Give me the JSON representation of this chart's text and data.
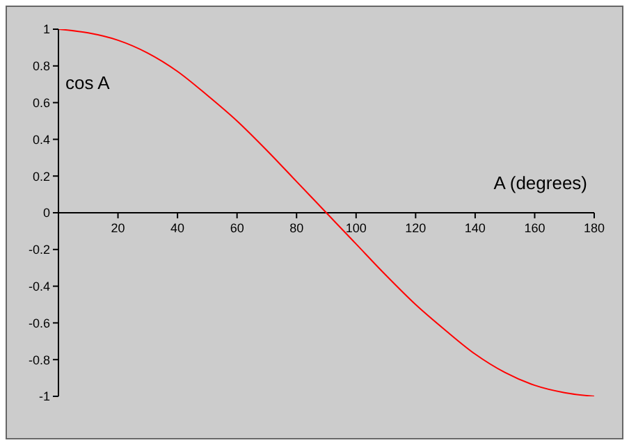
{
  "chart_data": {
    "type": "line",
    "xlabel": "A (degrees)",
    "ylabel": "cos A",
    "x": [
      0,
      10,
      20,
      30,
      40,
      50,
      60,
      70,
      80,
      90,
      100,
      110,
      120,
      130,
      140,
      150,
      160,
      170,
      180
    ],
    "series": [
      {
        "color": "#ff0000",
        "values": [
          1,
          0.98,
          0.94,
          0.87,
          0.77,
          0.64,
          0.5,
          0.34,
          0.17,
          0,
          -0.17,
          -0.34,
          -0.5,
          -0.64,
          -0.77,
          -0.87,
          -0.94,
          -0.98,
          -1
        ]
      }
    ],
    "xlim": [
      0,
      180
    ],
    "xticks": [
      20,
      40,
      60,
      80,
      100,
      120,
      140,
      160,
      180
    ],
    "ylim": [
      -1,
      1
    ],
    "yticks": [
      -1,
      -0.8,
      -0.6,
      -0.4,
      -0.2,
      0,
      0.2,
      0.4,
      0.6,
      0.8,
      1
    ],
    "grid": false,
    "legend": false,
    "marker": "none",
    "line_style": "solid"
  }
}
